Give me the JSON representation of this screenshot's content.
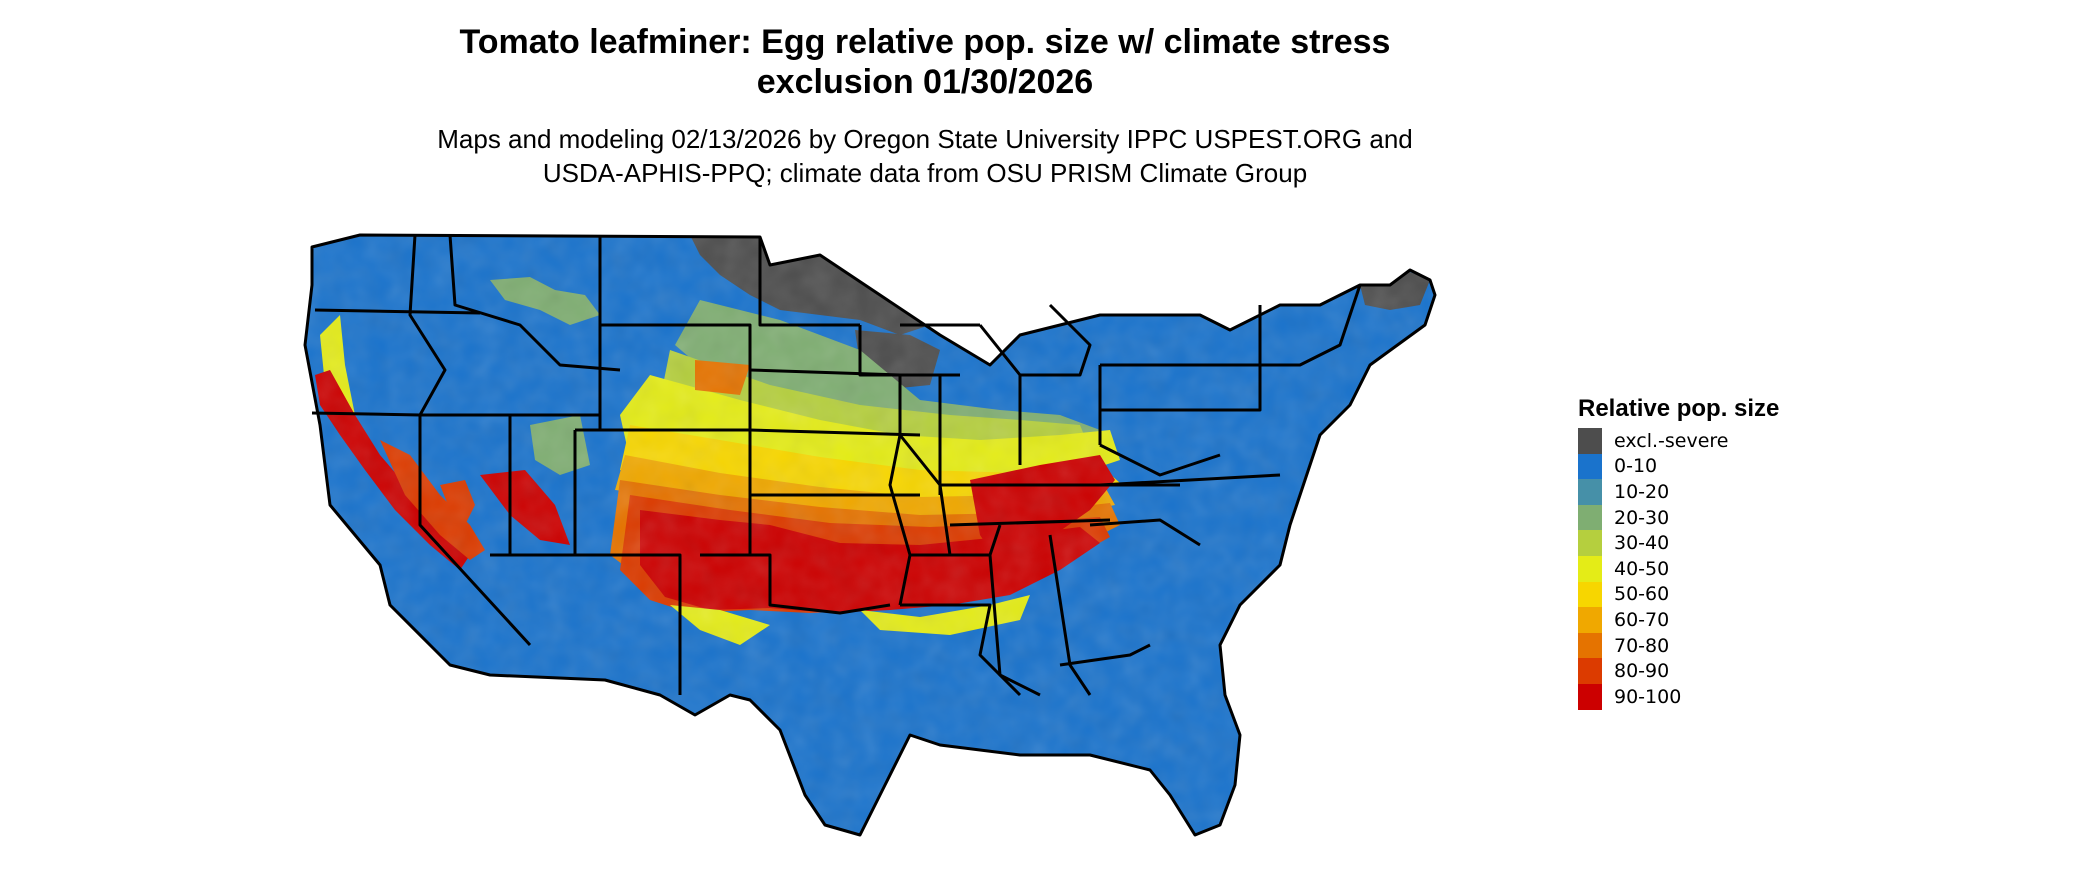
{
  "title": {
    "line1": "Tomato leafminer: Egg relative pop. size w/ climate stress",
    "line2": "exclusion 01/30/2026"
  },
  "subtitle": {
    "line1": "Maps and modeling 02/13/2026 by Oregon State University IPPC USPEST.ORG and",
    "line2": "USDA-APHIS-PPQ; climate data from OSU PRISM Climate Group"
  },
  "legend": {
    "title": "Relative pop. size",
    "items": [
      {
        "label": "excl.-severe",
        "color": "#4d4d4d"
      },
      {
        "label": "0-10",
        "color": "#1a73cc"
      },
      {
        "label": "10-20",
        "color": "#4690a8"
      },
      {
        "label": "20-30",
        "color": "#7fae72"
      },
      {
        "label": "30-40",
        "color": "#b5cf3e"
      },
      {
        "label": "40-50",
        "color": "#e4ec17"
      },
      {
        "label": "50-60",
        "color": "#f7d600"
      },
      {
        "label": "60-70",
        "color": "#f0a800"
      },
      {
        "label": "70-80",
        "color": "#e57300"
      },
      {
        "label": "80-90",
        "color": "#dc3b00"
      },
      {
        "label": "90-100",
        "color": "#cc0000"
      }
    ]
  }
}
